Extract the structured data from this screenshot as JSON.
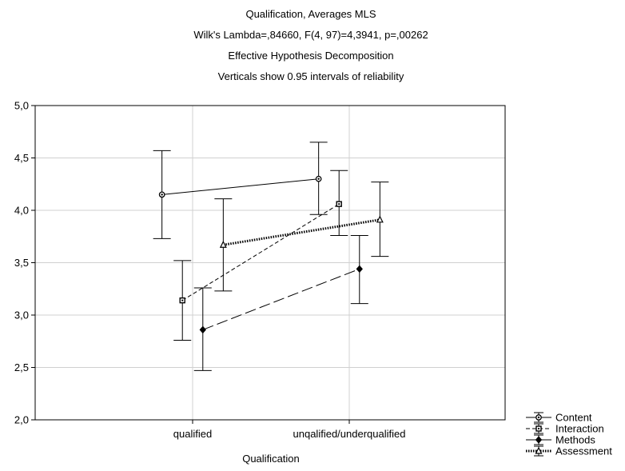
{
  "chart_data": {
    "type": "line",
    "title_lines": [
      "Qualification, Averages MLS",
      "Wilk's Lambda=,84660, F(4, 97)=4,3941, p=,00262",
      "Effective Hypothesis Decomposition",
      "Verticals show 0.95 intervals of reliability"
    ],
    "xlabel": "Qualification",
    "ylabel": "",
    "categories": [
      "qualified",
      "unqalified/underqualified"
    ],
    "ylim": [
      2.0,
      5.0
    ],
    "yticks": [
      "2,0",
      "2,5",
      "3,0",
      "3,5",
      "4,0",
      "4,5",
      "5,0"
    ],
    "grid": true,
    "legend_position": "bottom-right",
    "series": [
      {
        "name": "Content",
        "marker": "circle",
        "dash": "solid",
        "offset": -0.45,
        "values": [
          4.15,
          4.3
        ],
        "lower": [
          3.73,
          3.96
        ],
        "upper": [
          4.57,
          4.65
        ]
      },
      {
        "name": "Interaction",
        "marker": "square",
        "dash": "short-dash",
        "offset": -0.15,
        "values": [
          3.14,
          4.06
        ],
        "lower": [
          2.76,
          3.76
        ],
        "upper": [
          3.52,
          4.38
        ]
      },
      {
        "name": "Methods",
        "marker": "diamond",
        "dash": "long-dash",
        "offset": 0.15,
        "values": [
          2.86,
          3.44
        ],
        "lower": [
          2.47,
          3.11
        ],
        "upper": [
          3.26,
          3.76
        ]
      },
      {
        "name": "Assessment",
        "marker": "triangle",
        "dash": "dotted-thick",
        "offset": 0.45,
        "values": [
          3.67,
          3.91
        ],
        "lower": [
          3.23,
          3.56
        ],
        "upper": [
          4.11,
          4.27
        ]
      }
    ]
  }
}
